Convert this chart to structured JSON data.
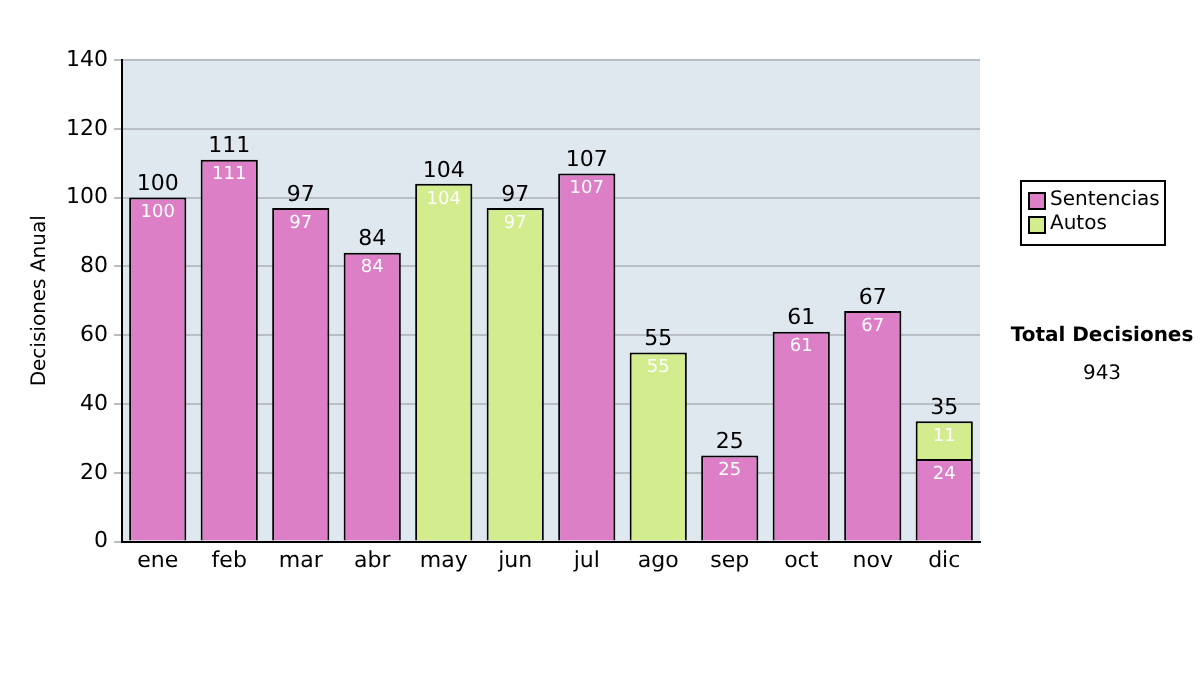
{
  "chart_data": {
    "type": "bar",
    "stacked": true,
    "ylabel": "Decisiones Anual",
    "categories": [
      "ene",
      "feb",
      "mar",
      "abr",
      "may",
      "jun",
      "jul",
      "ago",
      "sep",
      "oct",
      "nov",
      "dic"
    ],
    "series": [
      {
        "name": "Sentencias",
        "color": "#dd7fc6",
        "values": [
          100,
          111,
          97,
          84,
          null,
          null,
          107,
          null,
          25,
          61,
          67,
          24
        ]
      },
      {
        "name": "Autos",
        "color": "#d3ec8e",
        "values": [
          null,
          null,
          null,
          null,
          104,
          97,
          null,
          55,
          null,
          null,
          null,
          11
        ]
      }
    ],
    "totals": [
      "100",
      "111",
      "97",
      "84",
      "104",
      "97",
      "107",
      "55",
      "25",
      "61",
      "67",
      "35"
    ],
    "data_labels": true,
    "ylim": [
      0,
      140
    ],
    "yticks": [
      0,
      20,
      40,
      60,
      80,
      100,
      120,
      140
    ],
    "grid": "y",
    "legend": "right",
    "annotations": [
      "Total Decisiones",
      "943"
    ]
  }
}
